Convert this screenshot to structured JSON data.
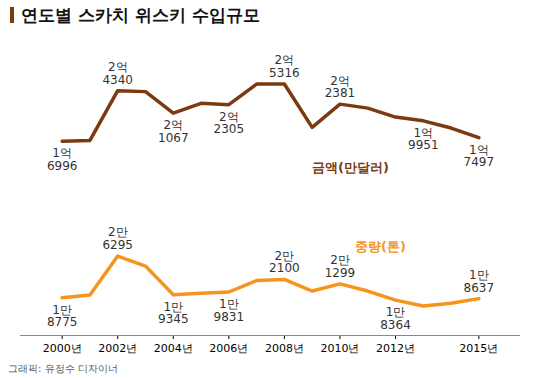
{
  "title": "연도별 스카치 위스키 수입규모",
  "caption": "그래픽: 유정수 디자이너",
  "chart_data": [
    {
      "type": "line",
      "x": [
        2000,
        2001,
        2002,
        2003,
        2004,
        2005,
        2006,
        2007,
        2008,
        2009,
        2010,
        2011,
        2012,
        2013,
        2014,
        2015
      ],
      "series": [
        {
          "name": "금액(만달러)",
          "color": "#7b3a10",
          "values": [
            16996,
            17100,
            24340,
            24200,
            21067,
            22500,
            22305,
            25300,
            25316,
            19000,
            22381,
            21800,
            20500,
            19951,
            18900,
            17497
          ],
          "value_labels": [
            "1억\n6996",
            null,
            "2억\n4340",
            null,
            "2억\n1067",
            null,
            "2억\n2305",
            null,
            "2억\n5316",
            null,
            "2억\n2381",
            null,
            null,
            "1억\n9951",
            null,
            "1억\n7497"
          ]
        }
      ],
      "xlim": [
        1998.5,
        2016.5
      ],
      "xticks": [],
      "ylim": [
        12000,
        28000
      ],
      "yticks": [],
      "tick_labels": false,
      "data_labels": true,
      "grid": false,
      "marker": "none",
      "line_style": "solid"
    },
    {
      "type": "line",
      "x": [
        2000,
        2001,
        2002,
        2003,
        2004,
        2005,
        2006,
        2007,
        2008,
        2009,
        2010,
        2011,
        2012,
        2013,
        2014,
        2015
      ],
      "series": [
        {
          "name": "중량(톤)",
          "color": "#f7941d",
          "values": [
            18775,
            19300,
            26295,
            24500,
            19345,
            19600,
            19831,
            21900,
            22100,
            20000,
            21299,
            20000,
            18364,
            17300,
            17800,
            18637
          ],
          "value_labels": [
            "1만\n8775",
            null,
            "2만\n6295",
            null,
            "1만\n9345",
            null,
            "1만\n9831",
            null,
            "2만\n2100",
            null,
            "2만\n1299",
            null,
            "1만\n8364",
            null,
            null,
            "1만\n8637"
          ]
        }
      ],
      "xlim": [
        1998.5,
        2016.5
      ],
      "xticks": [
        {
          "value": 2000,
          "label": "2000년"
        },
        {
          "value": 2002,
          "label": "2002년"
        },
        {
          "value": 2004,
          "label": "2004년"
        },
        {
          "value": 2006,
          "label": "2006년"
        },
        {
          "value": 2008,
          "label": "2008년"
        },
        {
          "value": 2010,
          "label": "2010년"
        },
        {
          "value": 2012,
          "label": "2012년"
        },
        {
          "value": 2015,
          "label": "2015년"
        }
      ],
      "ylim": [
        12000,
        30000
      ],
      "yticks": [],
      "tick_labels": "x",
      "data_labels": true,
      "grid": false,
      "marker": "none",
      "line_style": "solid"
    }
  ]
}
